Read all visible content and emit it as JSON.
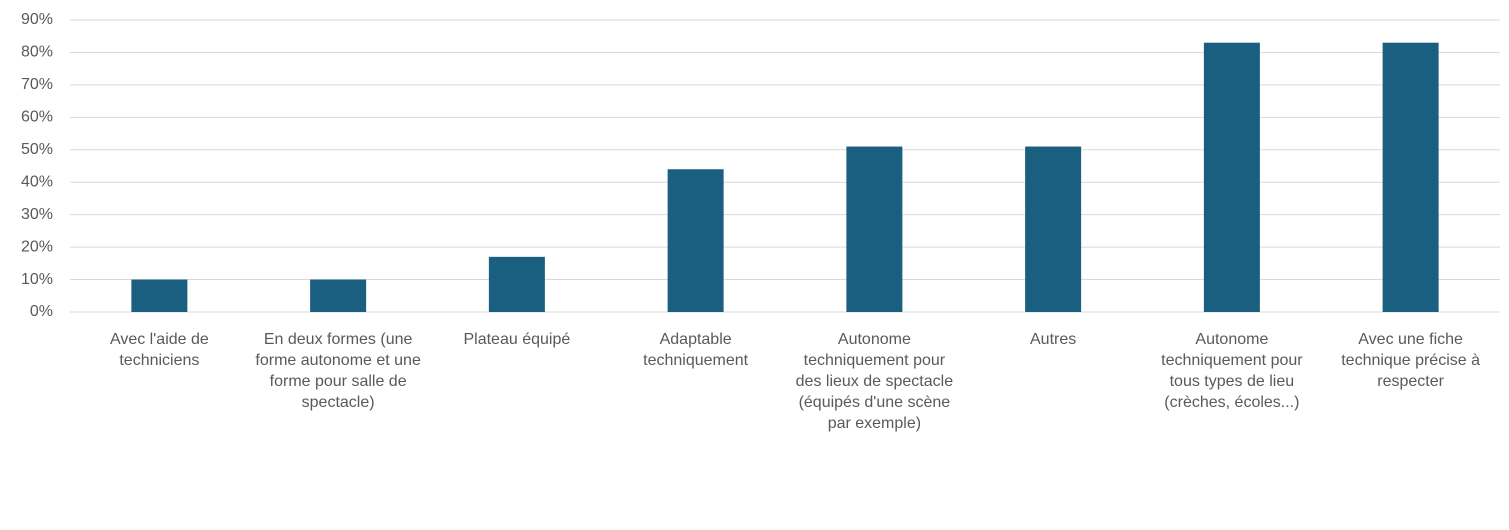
{
  "chart_data": {
    "type": "bar",
    "categories": [
      "Avec l'aide de techniciens",
      "En deux formes (une forme autonome et une forme pour salle de spectacle)",
      "Plateau équipé",
      "Adaptable techniquement",
      "Autonome techniquement pour des lieux de spectacle (équipés d'une scène par exemple)",
      "Autres",
      "Autonome techniquement pour tous types de lieu (crèches, écoles...)",
      "Avec une fiche technique précise à respecter"
    ],
    "values": [
      10,
      10,
      17,
      44,
      51,
      51,
      83,
      83
    ],
    "color": "#1a5e80",
    "ylim": [
      0,
      90
    ],
    "yticks": [
      {
        "value": 0,
        "label": "0%"
      },
      {
        "value": 10,
        "label": "10%"
      },
      {
        "value": 20,
        "label": "20%"
      },
      {
        "value": 30,
        "label": "30%"
      },
      {
        "value": 40,
        "label": "40%"
      },
      {
        "value": 50,
        "label": "50%"
      },
      {
        "value": 60,
        "label": "60%"
      },
      {
        "value": 70,
        "label": "70%"
      },
      {
        "value": 80,
        "label": "80%"
      },
      {
        "value": 90,
        "label": "90%"
      }
    ],
    "grid": true
  }
}
